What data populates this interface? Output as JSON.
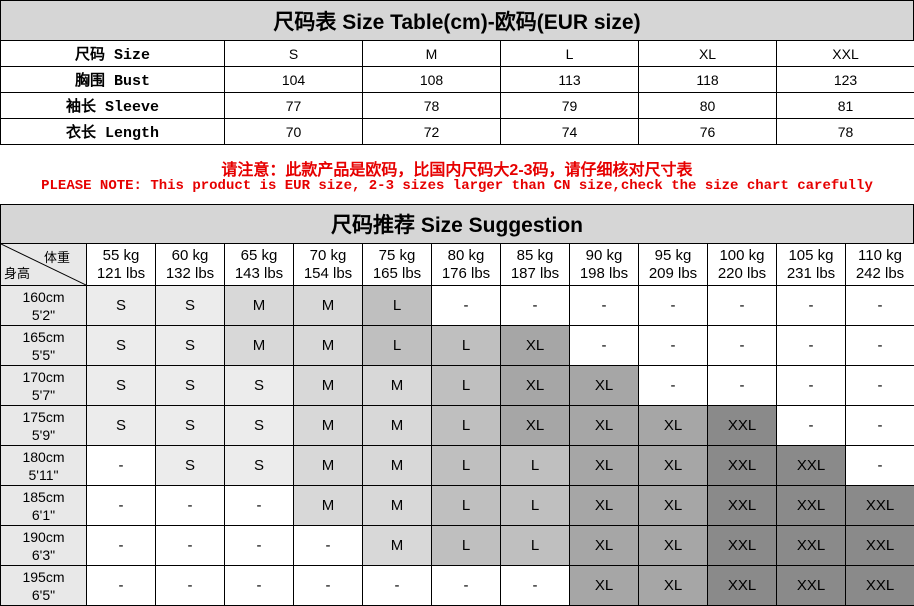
{
  "size_table": {
    "title": "尺码表 Size Table(cm)-欧码(EUR size)",
    "rows": [
      {
        "label": "尺码 Size",
        "values": [
          "S",
          "M",
          "L",
          "XL",
          "XXL"
        ]
      },
      {
        "label": "胸围 Bust",
        "values": [
          104,
          108,
          113,
          118,
          123
        ]
      },
      {
        "label": "袖长 Sleeve",
        "values": [
          77,
          78,
          79,
          80,
          81
        ]
      },
      {
        "label": "衣长 Length",
        "values": [
          70,
          72,
          74,
          76,
          78
        ]
      }
    ]
  },
  "note": {
    "zh": "请注意：此款产品是欧码，比国内尺码大2-3码，请仔细核对尺寸表",
    "en": "PLEASE NOTE: This product is EUR size, 2-3 sizes larger than CN size,check the size chart carefully"
  },
  "suggestion": {
    "title": "尺码推荐 Size Suggestion",
    "corner": {
      "weight": "体重",
      "height": "身高"
    },
    "columns": [
      {
        "kg": "55 kg",
        "lbs": "121 lbs"
      },
      {
        "kg": "60 kg",
        "lbs": "132 lbs"
      },
      {
        "kg": "65 kg",
        "lbs": "143 lbs"
      },
      {
        "kg": "70 kg",
        "lbs": "154 lbs"
      },
      {
        "kg": "75 kg",
        "lbs": "165 lbs"
      },
      {
        "kg": "80 kg",
        "lbs": "176 lbs"
      },
      {
        "kg": "85 kg",
        "lbs": "187 lbs"
      },
      {
        "kg": "90 kg",
        "lbs": "198 lbs"
      },
      {
        "kg": "95 kg",
        "lbs": "209 lbs"
      },
      {
        "kg": "100 kg",
        "lbs": "220 lbs"
      },
      {
        "kg": "105 kg",
        "lbs": "231 lbs"
      },
      {
        "kg": "110 kg",
        "lbs": "242 lbs"
      }
    ],
    "rows": [
      {
        "cm": "160cm",
        "ft": "5'2\"",
        "cells": [
          "S",
          "S",
          "M",
          "M",
          "L",
          "-",
          "-",
          "-",
          "-",
          "-",
          "-",
          "-"
        ]
      },
      {
        "cm": "165cm",
        "ft": "5'5\"",
        "cells": [
          "S",
          "S",
          "M",
          "M",
          "L",
          "L",
          "XL",
          "-",
          "-",
          "-",
          "-",
          "-"
        ]
      },
      {
        "cm": "170cm",
        "ft": "5'7\"",
        "cells": [
          "S",
          "S",
          "S",
          "M",
          "M",
          "L",
          "XL",
          "XL",
          "-",
          "-",
          "-",
          "-"
        ]
      },
      {
        "cm": "175cm",
        "ft": "5'9\"",
        "cells": [
          "S",
          "S",
          "S",
          "M",
          "M",
          "L",
          "XL",
          "XL",
          "XL",
          "XXL",
          "-",
          "-"
        ]
      },
      {
        "cm": "180cm",
        "ft": "5'11\"",
        "cells": [
          "-",
          "S",
          "S",
          "M",
          "M",
          "L",
          "L",
          "XL",
          "XL",
          "XXL",
          "XXL",
          "-"
        ]
      },
      {
        "cm": "185cm",
        "ft": "6'1\"",
        "cells": [
          "-",
          "-",
          "-",
          "M",
          "M",
          "L",
          "L",
          "XL",
          "XL",
          "XXL",
          "XXL",
          "XXL"
        ]
      },
      {
        "cm": "190cm",
        "ft": "6'3\"",
        "cells": [
          "-",
          "-",
          "-",
          "-",
          "M",
          "L",
          "L",
          "XL",
          "XL",
          "XXL",
          "XXL",
          "XXL"
        ]
      },
      {
        "cm": "195cm",
        "ft": "6'5\"",
        "cells": [
          "-",
          "-",
          "-",
          "-",
          "-",
          "-",
          "-",
          "XL",
          "XL",
          "XXL",
          "XXL",
          "XXL"
        ]
      }
    ]
  }
}
